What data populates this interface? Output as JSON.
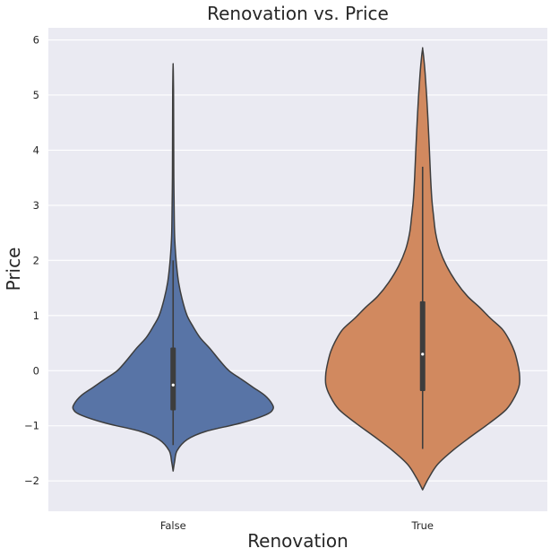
{
  "chart_data": {
    "type": "violin",
    "title": "Renovation vs. Price",
    "xlabel": "Renovation",
    "ylabel": "Price",
    "categories": [
      "False",
      "True"
    ],
    "ylim": [
      -2.55,
      6.22
    ],
    "yticks": [
      -2,
      -1,
      0,
      1,
      2,
      3,
      4,
      5,
      6
    ],
    "grid": true,
    "background": "#eaeaf2",
    "colors": {
      "False": "#5874a6",
      "True": "#d1895f",
      "outline": "#3d3d3d",
      "box": "#3d3d3d",
      "median": "#ffffff"
    },
    "violins": [
      {
        "category": "False",
        "min": -1.82,
        "max": 5.55,
        "whisker_low": -1.35,
        "whisker_high": 2.0,
        "q1": -0.72,
        "median": -0.26,
        "q3": 0.42,
        "density_profile": [
          [
            -1.82,
            0.0
          ],
          [
            -1.65,
            0.015
          ],
          [
            -1.45,
            0.04
          ],
          [
            -1.25,
            0.14
          ],
          [
            -1.1,
            0.33
          ],
          [
            -0.95,
            0.68
          ],
          [
            -0.8,
            0.93
          ],
          [
            -0.7,
            1.0
          ],
          [
            -0.6,
            0.99
          ],
          [
            -0.45,
            0.92
          ],
          [
            -0.3,
            0.8
          ],
          [
            -0.15,
            0.68
          ],
          [
            0.0,
            0.56
          ],
          [
            0.2,
            0.46
          ],
          [
            0.4,
            0.37
          ],
          [
            0.6,
            0.27
          ],
          [
            0.8,
            0.2
          ],
          [
            1.0,
            0.14
          ],
          [
            1.3,
            0.09
          ],
          [
            1.6,
            0.055
          ],
          [
            1.9,
            0.035
          ],
          [
            2.2,
            0.022
          ],
          [
            2.5,
            0.014
          ],
          [
            3.0,
            0.01
          ],
          [
            3.5,
            0.007
          ],
          [
            4.0,
            0.006
          ],
          [
            4.6,
            0.005
          ],
          [
            5.1,
            0.004
          ],
          [
            5.4,
            0.002
          ],
          [
            5.55,
            0.0
          ]
        ]
      },
      {
        "category": "True",
        "min": -2.16,
        "max": 5.84,
        "whisker_low": -1.42,
        "whisker_high": 3.7,
        "q1": -0.37,
        "median": 0.3,
        "q3": 1.26,
        "density_profile": [
          [
            -2.16,
            0.0
          ],
          [
            -1.95,
            0.06
          ],
          [
            -1.7,
            0.15
          ],
          [
            -1.45,
            0.3
          ],
          [
            -1.2,
            0.48
          ],
          [
            -0.95,
            0.67
          ],
          [
            -0.7,
            0.84
          ],
          [
            -0.45,
            0.93
          ],
          [
            -0.25,
            0.97
          ],
          [
            -0.05,
            0.97
          ],
          [
            0.15,
            0.95
          ],
          [
            0.35,
            0.92
          ],
          [
            0.55,
            0.87
          ],
          [
            0.75,
            0.8
          ],
          [
            0.95,
            0.68
          ],
          [
            1.15,
            0.57
          ],
          [
            1.35,
            0.45
          ],
          [
            1.6,
            0.34
          ],
          [
            1.9,
            0.24
          ],
          [
            2.2,
            0.17
          ],
          [
            2.5,
            0.13
          ],
          [
            2.8,
            0.11
          ],
          [
            3.1,
            0.093
          ],
          [
            3.5,
            0.08
          ],
          [
            4.0,
            0.068
          ],
          [
            4.5,
            0.055
          ],
          [
            5.0,
            0.04
          ],
          [
            5.4,
            0.025
          ],
          [
            5.7,
            0.01
          ],
          [
            5.84,
            0.0
          ]
        ]
      }
    ]
  }
}
